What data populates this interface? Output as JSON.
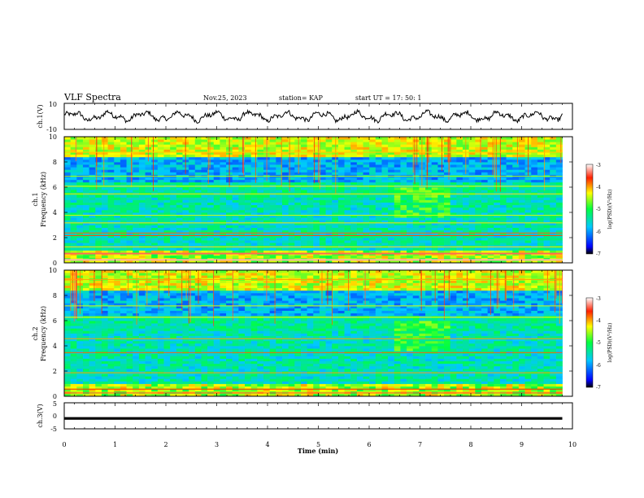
{
  "header": {
    "title": "VLF Spectra",
    "date": "Nov.25, 2023",
    "station": "station= KAP",
    "start": "start  UT  =   17: 50: 1"
  },
  "chart_data": [
    {
      "type": "line",
      "panel": "ch1-waveform",
      "ylabel": "ch.1(V)",
      "ylim": [
        -10,
        10
      ],
      "yticks": [
        "10",
        "-10"
      ],
      "xlim": [
        0,
        10
      ],
      "values_summary": "noisy oscillation between about -5 and 5 V over 0–9.8 min"
    },
    {
      "type": "heatmap",
      "panel": "ch1-spectrogram",
      "ylabel_line1": "ch.1",
      "ylabel_line2": "Frequency  (kHz)",
      "ylim": [
        0,
        10
      ],
      "yticks": [
        "0",
        "2",
        "4",
        "6",
        "8",
        "10"
      ],
      "xlim": [
        0,
        10
      ],
      "colorbar": {
        "label": "log(PSD)(V²/Hz)",
        "range": [
          -7,
          -3
        ],
        "ticks": [
          "-3",
          "-4",
          "-5",
          "-6",
          "-7"
        ]
      }
    },
    {
      "type": "heatmap",
      "panel": "ch2-spectrogram",
      "ylabel_line1": "ch.2",
      "ylabel_line2": "Frequency  (kHz)",
      "ylim": [
        0,
        10
      ],
      "yticks": [
        "0",
        "2",
        "4",
        "6",
        "8",
        "10"
      ],
      "xlim": [
        0,
        10
      ],
      "colorbar": {
        "label": "log(PSD)(V²/Hz)",
        "range": [
          -7,
          -3
        ],
        "ticks": [
          "-3",
          "-4",
          "-5",
          "-6",
          "-7"
        ]
      }
    },
    {
      "type": "line",
      "panel": "ch3-waveform",
      "ylabel": "ch.3(V)",
      "ylim": [
        -5,
        5
      ],
      "yticks": [
        "5",
        "0",
        "-5"
      ],
      "xlim": [
        0,
        10
      ],
      "xlabel": "Time  (min)",
      "xticks": [
        "0",
        "1",
        "2",
        "3",
        "4",
        "5",
        "6",
        "7",
        "8",
        "9",
        "10"
      ],
      "values_summary": "dense band around -1 V from 0 to 9.8 min"
    }
  ]
}
